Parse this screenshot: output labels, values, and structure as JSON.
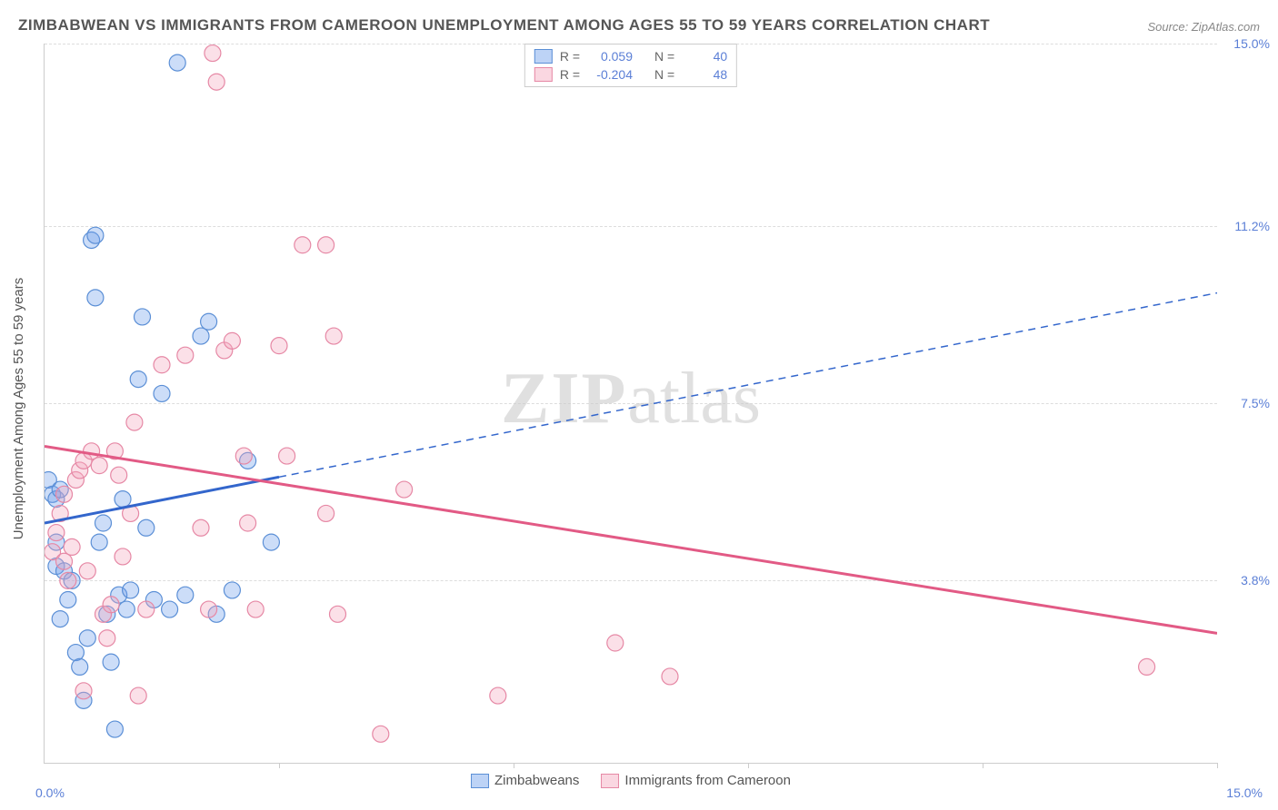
{
  "title": "ZIMBABWEAN VS IMMIGRANTS FROM CAMEROON UNEMPLOYMENT AMONG AGES 55 TO 59 YEARS CORRELATION CHART",
  "source": "Source: ZipAtlas.com",
  "y_axis_label": "Unemployment Among Ages 55 to 59 years",
  "watermark_bold": "ZIP",
  "watermark_rest": "atlas",
  "chart": {
    "type": "scatter",
    "xlim": [
      0,
      15
    ],
    "ylim": [
      0,
      15
    ],
    "x_ticks": [
      0,
      3,
      6,
      9,
      12,
      15
    ],
    "y_grid": [
      3.8,
      7.5,
      11.2,
      15.0
    ],
    "y_tick_labels": [
      "3.8%",
      "7.5%",
      "11.2%",
      "15.0%"
    ],
    "x_min_label": "0.0%",
    "x_max_label": "15.0%",
    "background_color": "#ffffff",
    "grid_color": "#dddddd",
    "axis_color": "#cccccc",
    "label_color": "#5b7fd6",
    "series": [
      {
        "name": "Zimbabweans",
        "color_fill": "rgba(109,158,235,0.35)",
        "color_stroke": "#5b8fd6",
        "trend_color": "#3366cc",
        "marker_radius": 9,
        "stats": {
          "R": "0.059",
          "N": "40"
        },
        "trend": {
          "x1": 0,
          "y1": 5.0,
          "x2": 15,
          "y2": 9.8,
          "solid_until_x": 3.0
        },
        "points": [
          [
            0.05,
            5.9
          ],
          [
            0.1,
            5.6
          ],
          [
            0.15,
            4.1
          ],
          [
            0.15,
            4.6
          ],
          [
            0.15,
            5.5
          ],
          [
            0.2,
            5.7
          ],
          [
            0.2,
            3.0
          ],
          [
            0.25,
            4.0
          ],
          [
            0.3,
            3.4
          ],
          [
            0.35,
            3.8
          ],
          [
            0.4,
            2.3
          ],
          [
            0.45,
            2.0
          ],
          [
            0.5,
            1.3
          ],
          [
            0.55,
            2.6
          ],
          [
            0.6,
            10.9
          ],
          [
            0.65,
            9.7
          ],
          [
            0.65,
            11.0
          ],
          [
            0.7,
            4.6
          ],
          [
            0.75,
            5.0
          ],
          [
            0.8,
            3.1
          ],
          [
            0.85,
            2.1
          ],
          [
            0.9,
            0.7
          ],
          [
            0.95,
            3.5
          ],
          [
            1.0,
            5.5
          ],
          [
            1.05,
            3.2
          ],
          [
            1.1,
            3.6
          ],
          [
            1.2,
            8.0
          ],
          [
            1.25,
            9.3
          ],
          [
            1.3,
            4.9
          ],
          [
            1.4,
            3.4
          ],
          [
            1.5,
            7.7
          ],
          [
            1.6,
            3.2
          ],
          [
            1.7,
            14.6
          ],
          [
            1.8,
            3.5
          ],
          [
            2.0,
            8.9
          ],
          [
            2.1,
            9.2
          ],
          [
            2.2,
            3.1
          ],
          [
            2.4,
            3.6
          ],
          [
            2.6,
            6.3
          ],
          [
            2.9,
            4.6
          ]
        ]
      },
      {
        "name": "Immigrants from Cameroon",
        "color_fill": "rgba(244,166,188,0.35)",
        "color_stroke": "#e688a5",
        "trend_color": "#e25a85",
        "marker_radius": 9,
        "stats": {
          "R": "-0.204",
          "N": "48"
        },
        "trend": {
          "x1": 0,
          "y1": 6.6,
          "x2": 15,
          "y2": 2.7,
          "solid_until_x": 15
        },
        "points": [
          [
            0.1,
            4.4
          ],
          [
            0.15,
            4.8
          ],
          [
            0.2,
            5.2
          ],
          [
            0.25,
            5.6
          ],
          [
            0.25,
            4.2
          ],
          [
            0.3,
            3.8
          ],
          [
            0.35,
            4.5
          ],
          [
            0.4,
            5.9
          ],
          [
            0.45,
            6.1
          ],
          [
            0.5,
            6.3
          ],
          [
            0.5,
            1.5
          ],
          [
            0.55,
            4.0
          ],
          [
            0.6,
            6.5
          ],
          [
            0.7,
            6.2
          ],
          [
            0.75,
            3.1
          ],
          [
            0.8,
            2.6
          ],
          [
            0.85,
            3.3
          ],
          [
            0.9,
            6.5
          ],
          [
            0.95,
            6.0
          ],
          [
            1.0,
            4.3
          ],
          [
            1.1,
            5.2
          ],
          [
            1.15,
            7.1
          ],
          [
            1.2,
            1.4
          ],
          [
            1.3,
            3.2
          ],
          [
            1.5,
            8.3
          ],
          [
            1.8,
            8.5
          ],
          [
            2.0,
            4.9
          ],
          [
            2.1,
            3.2
          ],
          [
            2.15,
            14.8
          ],
          [
            2.2,
            14.2
          ],
          [
            2.3,
            8.6
          ],
          [
            2.4,
            8.8
          ],
          [
            2.55,
            6.4
          ],
          [
            2.6,
            5.0
          ],
          [
            2.7,
            3.2
          ],
          [
            3.0,
            8.7
          ],
          [
            3.1,
            6.4
          ],
          [
            3.3,
            10.8
          ],
          [
            3.6,
            10.8
          ],
          [
            3.6,
            5.2
          ],
          [
            3.7,
            8.9
          ],
          [
            3.75,
            3.1
          ],
          [
            4.3,
            0.6
          ],
          [
            4.6,
            5.7
          ],
          [
            5.8,
            1.4
          ],
          [
            7.3,
            2.5
          ],
          [
            8.0,
            1.8
          ],
          [
            14.1,
            2.0
          ]
        ]
      }
    ]
  },
  "stats_legend": {
    "R_label": "R =",
    "N_label": "N ="
  }
}
